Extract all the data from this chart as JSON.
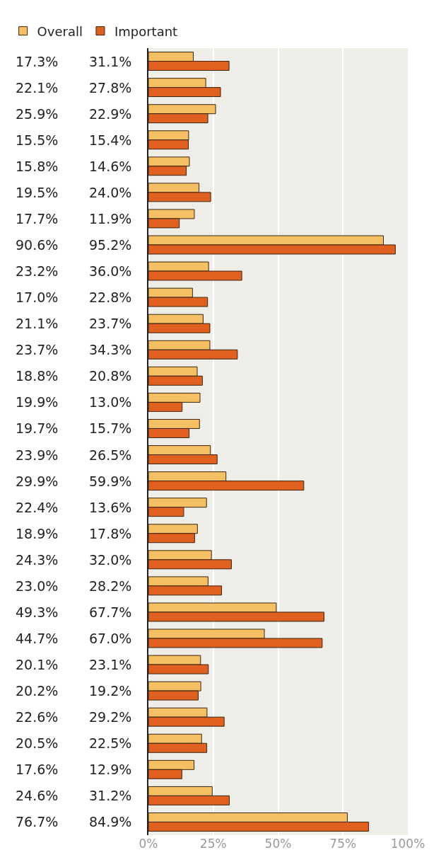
{
  "chart_data": {
    "type": "bar",
    "orientation": "horizontal",
    "categories": [
      null,
      null,
      null,
      null,
      null,
      null,
      null,
      null,
      null,
      null,
      null,
      null,
      null,
      null,
      null,
      null,
      null,
      null,
      null,
      null,
      null,
      null,
      null,
      null,
      null,
      null,
      null,
      null,
      null,
      null
    ],
    "series": [
      {
        "name": "Overall",
        "color": "#f5c063",
        "values": [
          17.3,
          22.1,
          25.9,
          15.5,
          15.8,
          19.5,
          17.7,
          90.6,
          23.2,
          17.0,
          21.1,
          23.7,
          18.8,
          19.9,
          19.7,
          23.9,
          29.9,
          22.4,
          18.9,
          24.3,
          23.0,
          49.3,
          44.7,
          20.1,
          20.2,
          22.6,
          20.5,
          17.6,
          24.6,
          76.7
        ],
        "value_labels": [
          "17.3%",
          "22.1%",
          "25.9%",
          "15.5%",
          "15.8%",
          "19.5%",
          "17.7%",
          "90.6%",
          "23.2%",
          "17.0%",
          "21.1%",
          "23.7%",
          "18.8%",
          "19.9%",
          "19.7%",
          "23.9%",
          "29.9%",
          "22.4%",
          "18.9%",
          "24.3%",
          "23.0%",
          "49.3%",
          "44.7%",
          "20.1%",
          "20.2%",
          "22.6%",
          "20.5%",
          "17.6%",
          "24.6%",
          "76.7%"
        ]
      },
      {
        "name": "Important",
        "color": "#e0611f",
        "values": [
          31.1,
          27.8,
          22.9,
          15.4,
          14.6,
          24.0,
          11.9,
          95.2,
          36.0,
          22.8,
          23.7,
          34.3,
          20.8,
          13.0,
          15.7,
          26.5,
          59.9,
          13.6,
          17.8,
          32.0,
          28.2,
          67.7,
          67.0,
          23.1,
          19.2,
          29.2,
          22.5,
          12.9,
          31.2,
          84.9
        ],
        "value_labels": [
          "31.1%",
          "27.8%",
          "22.9%",
          "15.4%",
          "14.6%",
          "24.0%",
          "11.9%",
          "95.2%",
          "36.0%",
          "22.8%",
          "23.7%",
          "34.3%",
          "20.8%",
          "13.0%",
          "15.7%",
          "26.5%",
          "59.9%",
          "13.6%",
          "17.8%",
          "32.0%",
          "28.2%",
          "67.7%",
          "67.0%",
          "23.1%",
          "19.2%",
          "29.2%",
          "22.5%",
          "12.9%",
          "31.2%",
          "84.9%"
        ]
      }
    ],
    "xlim": [
      0,
      100
    ],
    "xticks": [
      {
        "value": 0,
        "label": "0%"
      },
      {
        "value": 25,
        "label": "25%"
      },
      {
        "value": 50,
        "label": "50%"
      },
      {
        "value": 75,
        "label": "75%"
      },
      {
        "value": 100,
        "label": "100%"
      }
    ],
    "grid": "x",
    "legend": "top left"
  }
}
